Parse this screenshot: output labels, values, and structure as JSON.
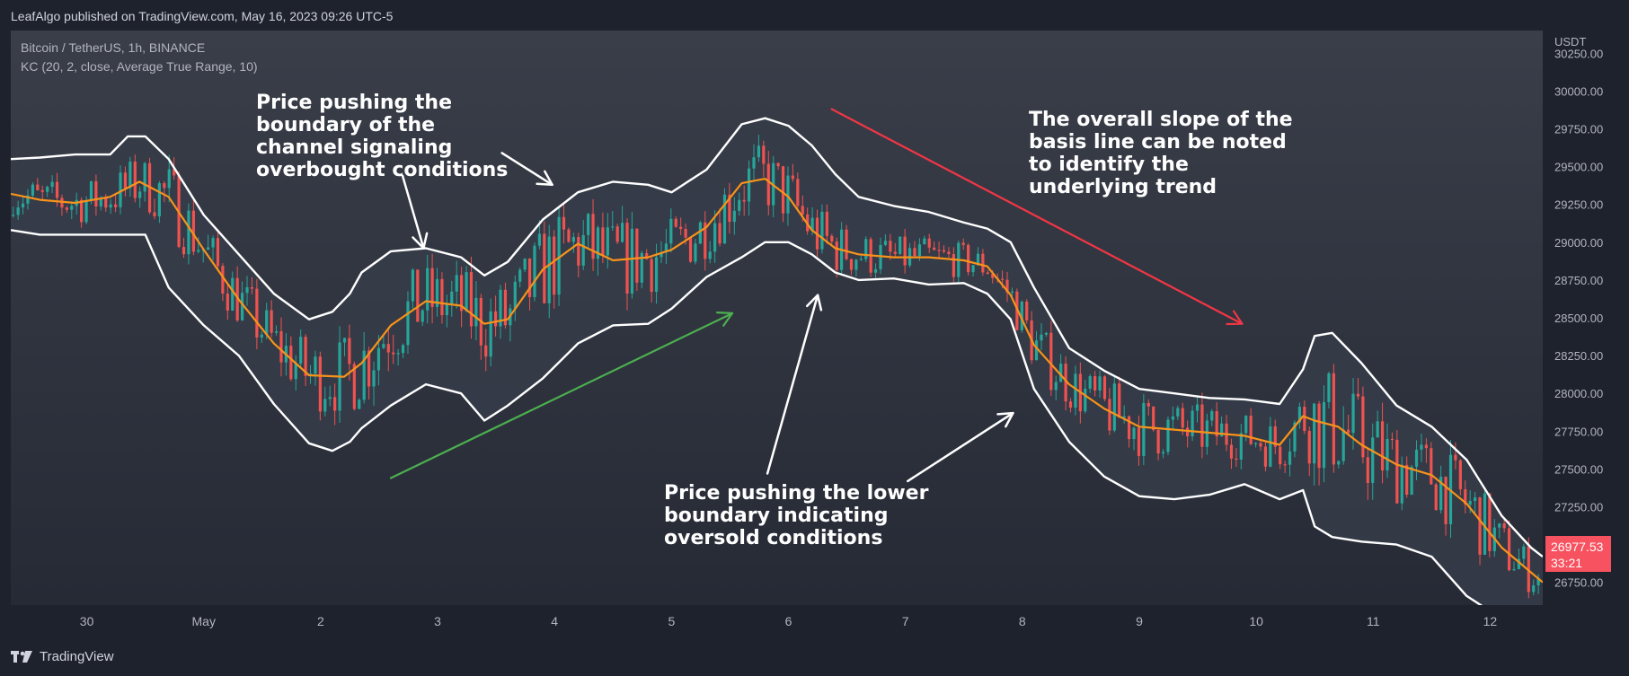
{
  "header": {
    "published_text": "LeafAlgo published on TradingView.com, May 16, 2023 09:26 UTC-5"
  },
  "legend": {
    "symbol_line": "Bitcoin / TetherUS, 1h, BINANCE",
    "indicator_line": "KC (20, 2, close, Average True Range, 10)"
  },
  "annotations": {
    "overbought": "Price pushing the\nboundary of the\nchannel signaling\noverbought conditions",
    "trend": "The overall slope of the\nbasis line can be noted\nto identify the\nunderlying trend",
    "oversold": "Price pushing the lower\nboundary indicating\noversold conditions"
  },
  "price_label": {
    "price": "26977.53",
    "countdown": "33:21"
  },
  "footer": {
    "brand": "TradingView"
  },
  "colors": {
    "background": "#1e222d",
    "plot_background": "#2b2f3a",
    "channel_fill": "#363c49",
    "band_line": "#ffffff",
    "basis_line": "#f7931a",
    "candle_up": "#26a69a",
    "candle_down": "#ef5350",
    "arrow_up": "#4caf50",
    "arrow_down": "#f23645",
    "arrow_annotation": "#ffffff"
  },
  "chart_data": {
    "type": "candlestick",
    "symbol": "Bitcoin / TetherUS",
    "interval": "1h",
    "exchange": "BINANCE",
    "y_axis_unit": "USDT",
    "ylim": [
      26600,
      30400
    ],
    "yticks": [
      30250,
      30000,
      29750,
      29500,
      29250,
      29000,
      28750,
      28500,
      28250,
      28000,
      27750,
      27500,
      27250,
      27000,
      26750
    ],
    "ytick_labels": [
      "30250.00",
      "30000.00",
      "29750.00",
      "29500.00",
      "29250.00",
      "29000.00",
      "28750.00",
      "28500.00",
      "28250.00",
      "28000.00",
      "27750.00",
      "27500.00",
      "27250.00",
      "27000.00",
      "26750.00"
    ],
    "xlim_days": [
      29.35,
      42.45
    ],
    "xticks": [
      {
        "day": 30,
        "label": "30"
      },
      {
        "day": 31,
        "label": "May"
      },
      {
        "day": 32,
        "label": "2"
      },
      {
        "day": 33,
        "label": "3"
      },
      {
        "day": 34,
        "label": "4"
      },
      {
        "day": 35,
        "label": "5"
      },
      {
        "day": 36,
        "label": "6"
      },
      {
        "day": 37,
        "label": "7"
      },
      {
        "day": 38,
        "label": "8"
      },
      {
        "day": 39,
        "label": "9"
      },
      {
        "day": 40,
        "label": "10"
      },
      {
        "day": 41,
        "label": "11"
      },
      {
        "day": 42,
        "label": "12"
      }
    ],
    "last_price": 26977.53,
    "series": [
      {
        "name": "Basis",
        "role": "basis",
        "x": [
          29.35,
          29.6,
          29.9,
          30.2,
          30.45,
          30.7,
          31.0,
          31.3,
          31.6,
          31.9,
          32.2,
          32.35,
          32.6,
          32.9,
          33.2,
          33.4,
          33.6,
          33.9,
          34.2,
          34.5,
          34.8,
          35.0,
          35.3,
          35.6,
          35.8,
          36.0,
          36.2,
          36.4,
          36.6,
          36.9,
          37.2,
          37.5,
          37.7,
          37.9,
          38.1,
          38.4,
          38.7,
          39.0,
          39.3,
          39.6,
          39.9,
          40.2,
          40.4,
          40.5,
          40.7,
          40.9,
          41.2,
          41.5,
          41.8,
          42.1,
          42.45
        ],
        "y": [
          29320,
          29280,
          29260,
          29300,
          29400,
          29300,
          28950,
          28620,
          28330,
          28120,
          28110,
          28200,
          28450,
          28610,
          28580,
          28460,
          28490,
          28820,
          28990,
          28880,
          28900,
          28950,
          29100,
          29390,
          29420,
          29300,
          29080,
          28960,
          28920,
          28900,
          28900,
          28880,
          28840,
          28650,
          28320,
          28060,
          27900,
          27780,
          27760,
          27740,
          27720,
          27660,
          27850,
          27820,
          27780,
          27660,
          27530,
          27460,
          27270,
          26980,
          26750
        ]
      },
      {
        "name": "Upper",
        "role": "upper",
        "x": [
          29.35,
          29.6,
          29.9,
          30.2,
          30.35,
          30.5,
          30.7,
          31.0,
          31.3,
          31.6,
          31.9,
          32.1,
          32.25,
          32.35,
          32.6,
          32.9,
          33.2,
          33.4,
          33.6,
          33.9,
          34.2,
          34.5,
          34.8,
          35.0,
          35.3,
          35.6,
          35.8,
          36.0,
          36.2,
          36.4,
          36.6,
          36.9,
          37.2,
          37.5,
          37.7,
          37.9,
          38.1,
          38.4,
          38.7,
          39.0,
          39.3,
          39.6,
          39.9,
          40.2,
          40.4,
          40.5,
          40.65,
          40.9,
          41.2,
          41.5,
          41.8,
          42.1,
          42.35,
          42.45
        ],
        "y": [
          29550,
          29560,
          29580,
          29580,
          29700,
          29700,
          29550,
          29180,
          28920,
          28660,
          28490,
          28540,
          28660,
          28800,
          28940,
          28960,
          28900,
          28780,
          28870,
          29150,
          29330,
          29400,
          29380,
          29330,
          29480,
          29780,
          29820,
          29770,
          29640,
          29450,
          29300,
          29240,
          29200,
          29130,
          29090,
          29000,
          28700,
          28300,
          28150,
          28030,
          28000,
          27970,
          27960,
          27930,
          28160,
          28380,
          28400,
          28200,
          27920,
          27780,
          27560,
          27190,
          26980,
          26920
        ]
      },
      {
        "name": "Lower",
        "role": "lower",
        "x": [
          29.35,
          29.6,
          29.9,
          30.2,
          30.35,
          30.5,
          30.7,
          31.0,
          31.3,
          31.6,
          31.9,
          32.1,
          32.25,
          32.35,
          32.6,
          32.9,
          33.2,
          33.4,
          33.6,
          33.9,
          34.2,
          34.5,
          34.8,
          35.0,
          35.3,
          35.6,
          35.8,
          36.0,
          36.2,
          36.4,
          36.6,
          36.9,
          37.2,
          37.5,
          37.7,
          37.9,
          38.1,
          38.4,
          38.7,
          39.0,
          39.3,
          39.6,
          39.9,
          40.2,
          40.4,
          40.5,
          40.65,
          40.9,
          41.2,
          41.5,
          41.8,
          42.1,
          42.35,
          42.45
        ],
        "y": [
          29080,
          29050,
          29050,
          29050,
          29050,
          29050,
          28700,
          28450,
          28250,
          27930,
          27670,
          27620,
          27680,
          27770,
          27920,
          28060,
          28000,
          27820,
          27920,
          28100,
          28330,
          28450,
          28460,
          28560,
          28770,
          28900,
          29000,
          29000,
          28920,
          28800,
          28750,
          28760,
          28720,
          28730,
          28660,
          28490,
          28030,
          27680,
          27450,
          27320,
          27300,
          27330,
          27400,
          27300,
          27360,
          27120,
          27050,
          27020,
          27000,
          26920,
          26660,
          26510,
          26460,
          26460
        ]
      }
    ],
    "annotation_arrows": [
      {
        "color": "arrow_annotation",
        "from": [
          32.7,
          29440
        ],
        "to": [
          32.88,
          28960
        ]
      },
      {
        "color": "arrow_annotation",
        "from": [
          33.55,
          29590
        ],
        "to": [
          33.98,
          29380
        ]
      },
      {
        "color": "arrow_annotation",
        "from": [
          35.82,
          27470
        ],
        "to": [
          36.25,
          28650
        ]
      },
      {
        "color": "arrow_annotation",
        "from": [
          37.02,
          27420
        ],
        "to": [
          37.92,
          27870
        ]
      },
      {
        "color": "arrow_up",
        "from": [
          32.6,
          27440
        ],
        "to": [
          35.52,
          28530
        ]
      },
      {
        "color": "arrow_down",
        "from": [
          36.37,
          29880
        ],
        "to": [
          39.88,
          28460
        ]
      }
    ]
  }
}
